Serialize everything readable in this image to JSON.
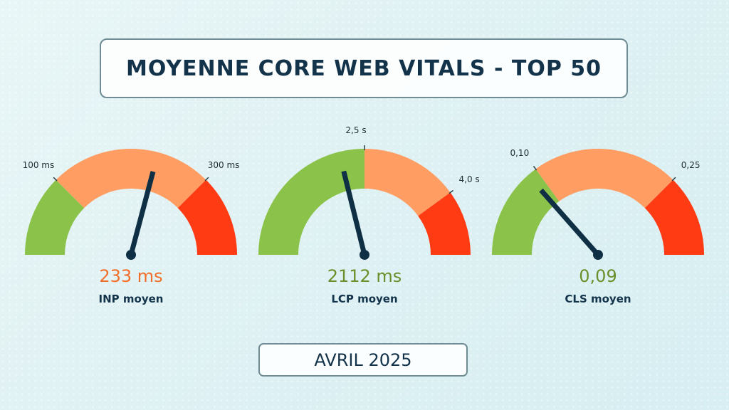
{
  "title": "MOYENNE CORE WEB VITALS - TOP 50",
  "date": "AVRIL 2025",
  "colors": {
    "good": "#8bc34a",
    "needs_improvement": "#ff9d62",
    "poor": "#ff3b14",
    "needle": "#0f2f45"
  },
  "chart_data": [
    {
      "type": "gauge",
      "label": "INP moyen",
      "value_text": "233 ms",
      "value": 233,
      "unit": "ms",
      "threshold_labels": [
        "100 ms",
        "300 ms"
      ],
      "thresholds": [
        100,
        300
      ],
      "range": [
        0,
        400
      ],
      "status": "needs_improvement",
      "value_color": "#f26f2b"
    },
    {
      "type": "gauge",
      "label": "LCP moyen",
      "value_text": "2112 ms",
      "value": 2112,
      "unit": "ms",
      "threshold_labels": [
        "2,5 s",
        "4,0 s"
      ],
      "thresholds": [
        2500,
        4000
      ],
      "range": [
        0,
        5000
      ],
      "status": "good",
      "value_color": "#6b8f2a"
    },
    {
      "type": "gauge",
      "label": "CLS moyen",
      "value_text": "0,09",
      "value": 0.09,
      "unit": "",
      "threshold_labels": [
        "0,10",
        "0,25"
      ],
      "thresholds": [
        0.1,
        0.25
      ],
      "range": [
        0,
        0.3333
      ],
      "status": "good",
      "value_color": "#6b8f2a"
    }
  ]
}
